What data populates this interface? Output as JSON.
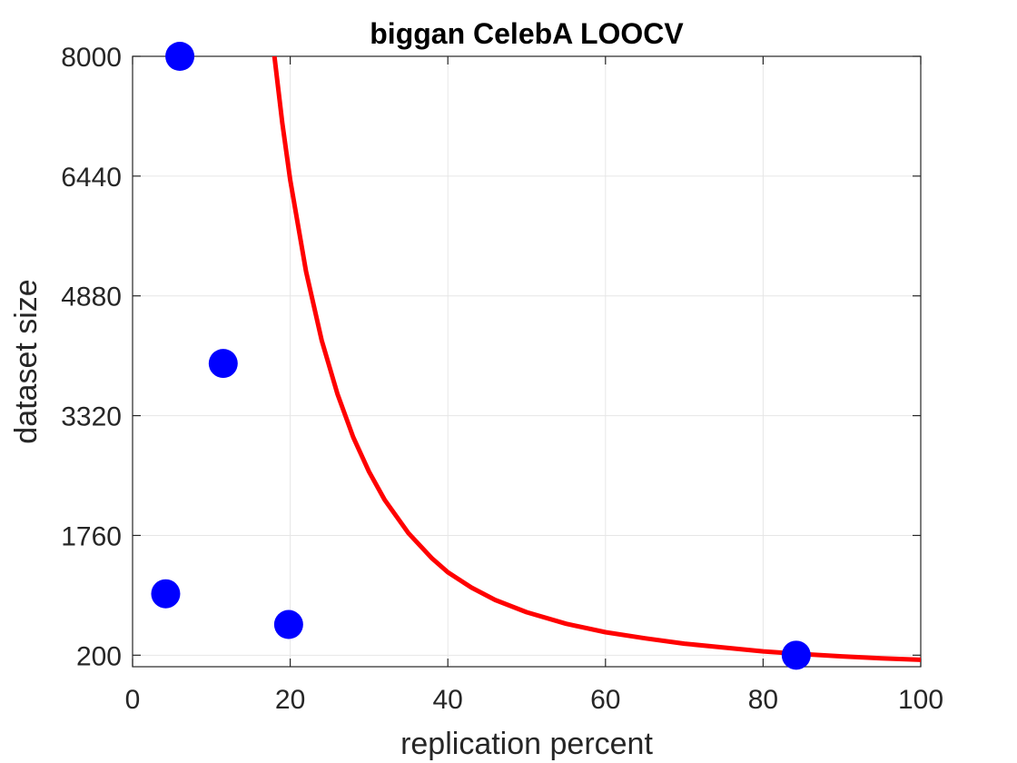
{
  "chart_data": {
    "type": "scatter",
    "title": "biggan CelebA LOOCV",
    "xlabel": "replication percent",
    "ylabel": "dataset size",
    "xlim": [
      0,
      100
    ],
    "ylim": [
      50,
      8000
    ],
    "xticks": [
      "0",
      "20",
      "40",
      "60",
      "80",
      "100"
    ],
    "yticks": [
      "200",
      "1760",
      "3320",
      "4880",
      "6440",
      "8000"
    ],
    "grid": true,
    "series": [
      {
        "kind": "scatter",
        "color": "#0000ff",
        "points": [
          {
            "x": 6.0,
            "y": 8000
          },
          {
            "x": 11.5,
            "y": 4000
          },
          {
            "x": 4.2,
            "y": 1000
          },
          {
            "x": 19.8,
            "y": 600
          },
          {
            "x": 84.2,
            "y": 200
          }
        ]
      },
      {
        "kind": "fitted-curve",
        "color": "#ff0000",
        "points": [
          {
            "x": 18.0,
            "y": 8000
          },
          {
            "x": 19.0,
            "y": 7130
          },
          {
            "x": 20.0,
            "y": 6390
          },
          {
            "x": 22.0,
            "y": 5200
          },
          {
            "x": 24.0,
            "y": 4300
          },
          {
            "x": 26.0,
            "y": 3600
          },
          {
            "x": 28.0,
            "y": 3040
          },
          {
            "x": 30.0,
            "y": 2590
          },
          {
            "x": 32.0,
            "y": 2220
          },
          {
            "x": 35.0,
            "y": 1790
          },
          {
            "x": 38.0,
            "y": 1460
          },
          {
            "x": 40.0,
            "y": 1280
          },
          {
            "x": 43.0,
            "y": 1080
          },
          {
            "x": 46.0,
            "y": 920
          },
          {
            "x": 50.0,
            "y": 760
          },
          {
            "x": 55.0,
            "y": 610
          },
          {
            "x": 60.0,
            "y": 500
          },
          {
            "x": 65.0,
            "y": 420
          },
          {
            "x": 70.0,
            "y": 350
          },
          {
            "x": 75.0,
            "y": 300
          },
          {
            "x": 80.0,
            "y": 250
          },
          {
            "x": 85.0,
            "y": 215
          },
          {
            "x": 90.0,
            "y": 185
          },
          {
            "x": 95.0,
            "y": 160
          },
          {
            "x": 100.0,
            "y": 140
          }
        ]
      }
    ]
  }
}
